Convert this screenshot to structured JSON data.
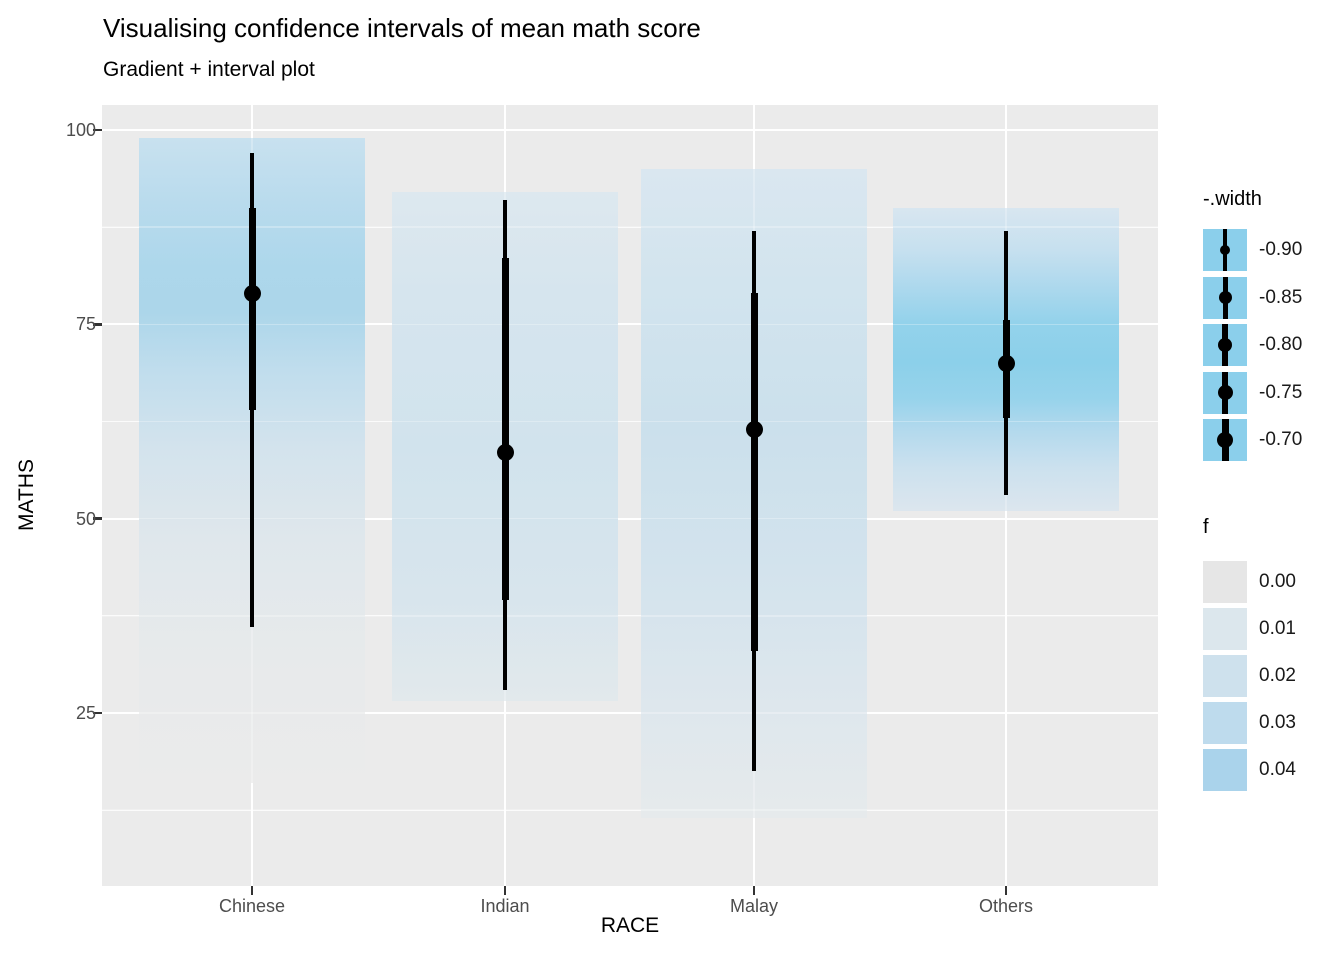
{
  "chart_data": {
    "type": "interval",
    "title": "Visualising confidence intervals of mean math score",
    "subtitle": "Gradient + interval plot",
    "xlabel": "RACE",
    "ylabel": "MATHS",
    "x_categories": [
      "Chinese",
      "Indian",
      "Malay",
      "Others"
    ],
    "y_ticks": [
      25,
      50,
      75,
      100
    ],
    "y_minor_ticks": [
      12.5,
      37.5,
      62.5,
      87.5
    ],
    "ylim": [
      2.5,
      103.2
    ],
    "panel_bg": "#EBEBEB",
    "gridline_color": "#FFFFFF",
    "tick_label_color": "#4D4D4D",
    "interval_color": "#000000",
    "series": [
      {
        "category": "Chinese",
        "mean": 79,
        "interval_thick": [
          64,
          90
        ],
        "interval_thin": [
          36,
          97
        ],
        "band": [
          16,
          99
        ],
        "gradient": [
          [
            0,
            "#C8E1EF"
          ],
          [
            0.1,
            "#B9DBED"
          ],
          [
            0.2,
            "#ADD7EB"
          ],
          [
            0.27,
            "#ACD6EA"
          ],
          [
            0.36,
            "#C0DDED"
          ],
          [
            0.48,
            "#D3E3ED"
          ],
          [
            0.62,
            "#DFE7EC"
          ],
          [
            0.8,
            "#E7EAEB"
          ],
          [
            1,
            "#EBEBEB"
          ]
        ]
      },
      {
        "category": "Indian",
        "mean": 58.5,
        "interval_thick": [
          39.5,
          83.5
        ],
        "interval_thin": [
          28,
          91
        ],
        "band": [
          26.5,
          92
        ],
        "gradient": [
          [
            0,
            "#DDE8EF"
          ],
          [
            0.2,
            "#D6E5EE"
          ],
          [
            0.5,
            "#D1E3ED"
          ],
          [
            0.8,
            "#D8E5ED"
          ],
          [
            1,
            "#E2E9EC"
          ]
        ]
      },
      {
        "category": "Malay",
        "mean": 61.5,
        "interval_thick": [
          33,
          79
        ],
        "interval_thin": [
          17.5,
          87
        ],
        "band": [
          11.5,
          95
        ],
        "gradient": [
          [
            0,
            "#DAE7F0"
          ],
          [
            0.18,
            "#D2E4EE"
          ],
          [
            0.4,
            "#CBE0EC"
          ],
          [
            0.62,
            "#D3E3ED"
          ],
          [
            0.83,
            "#DEE7ED"
          ],
          [
            1,
            "#E6EAEC"
          ]
        ]
      },
      {
        "category": "Others",
        "mean": 70,
        "interval_thick": [
          63,
          75.5
        ],
        "interval_thin": [
          53,
          87
        ],
        "band": [
          51,
          90
        ],
        "gradient": [
          [
            0,
            "#D8E6F0"
          ],
          [
            0.14,
            "#C6E0EF"
          ],
          [
            0.27,
            "#ABD8ED"
          ],
          [
            0.38,
            "#93D2EB"
          ],
          [
            0.51,
            "#8CD0EA"
          ],
          [
            0.63,
            "#97D3EB"
          ],
          [
            0.73,
            "#B2D9ED"
          ],
          [
            0.86,
            "#CCE1EE"
          ],
          [
            1,
            "#DCE6EE"
          ]
        ]
      }
    ],
    "legends": {
      "width": {
        "title": "-.width",
        "key_fill": "#8BCFEB",
        "items": [
          {
            "label": "-0.90",
            "line": 4,
            "dot": 10
          },
          {
            "label": "-0.85",
            "line": 5,
            "dot": 13
          },
          {
            "label": "-0.80",
            "line": 5.5,
            "dot": 14.5
          },
          {
            "label": "-0.75",
            "line": 6,
            "dot": 15
          },
          {
            "label": "-0.70",
            "line": 7,
            "dot": 16
          }
        ]
      },
      "f": {
        "title": "f",
        "items": [
          {
            "label": "0.00",
            "color": "#E6E6E6"
          },
          {
            "label": "0.01",
            "color": "#DCE7ED"
          },
          {
            "label": "0.02",
            "color": "#CEE1ED"
          },
          {
            "label": "0.03",
            "color": "#BEDBED"
          },
          {
            "label": "0.04",
            "color": "#AAD3EB"
          }
        ]
      }
    }
  }
}
